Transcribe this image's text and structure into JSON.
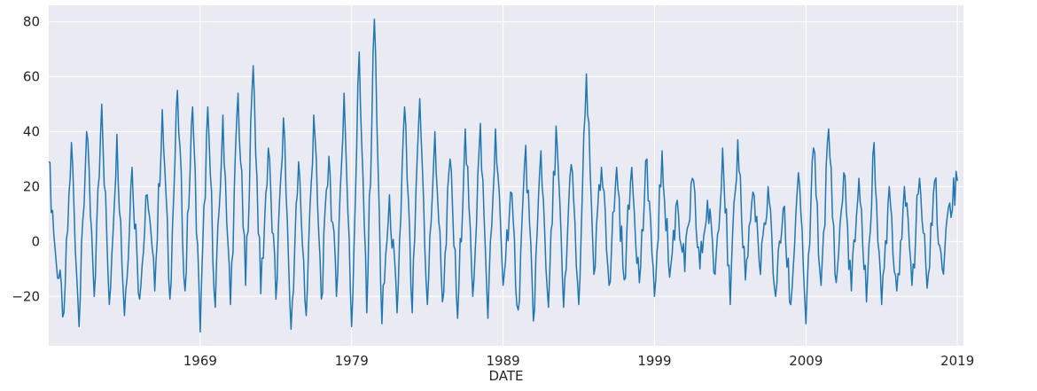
{
  "chart_data": {
    "type": "line",
    "title": "",
    "xlabel": "DATE",
    "ylabel": "",
    "x_ticks": [
      "1969",
      "1979",
      "1989",
      "1999",
      "2009",
      "2019"
    ],
    "y_ticks": [
      "80",
      "60",
      "40",
      "20",
      "0",
      "−20"
    ],
    "xlim": [
      1959.0,
      2019.4
    ],
    "ylim": [
      -38,
      86
    ],
    "grid": true,
    "legend": "none",
    "colors": {
      "background": "#eaeaf2",
      "grid": "#ffffff",
      "line": "#1f77b4"
    },
    "sampling": "monthly, values listed at 6-month steps starting 1959",
    "series": [
      {
        "x_start": 1959.0,
        "x_step": 0.5,
        "values": [
          29,
          -8,
          -26,
          36,
          -31,
          40,
          -20,
          50,
          -23,
          39,
          -27,
          27,
          -21,
          17,
          -18,
          48,
          -21,
          55,
          -18,
          49,
          -33,
          49,
          -24,
          46,
          -23,
          54,
          -16,
          64,
          -19,
          34,
          -21,
          45,
          -32,
          29,
          -27,
          46,
          -21,
          31,
          -20,
          54,
          -31,
          69,
          -26,
          81,
          -30,
          17,
          -26,
          49,
          -26,
          52,
          -23,
          40,
          -22,
          30,
          -28,
          41,
          -20,
          43,
          -28,
          41,
          -16,
          18,
          -25,
          35,
          -29,
          33,
          -24,
          42,
          -24,
          28,
          -23,
          61,
          -12,
          27,
          -16,
          27,
          -14,
          27,
          -15,
          30,
          -20,
          33,
          -13,
          15,
          -11,
          23,
          -10,
          15,
          -12,
          34,
          -23,
          37,
          -14,
          18,
          -12,
          20,
          -20,
          12,
          -23,
          25,
          -30,
          34,
          -16,
          41,
          -15,
          25,
          -18,
          23,
          -22,
          36,
          -23,
          20,
          -18,
          20,
          -16,
          23,
          -17,
          22,
          -10,
          14,
          22
        ]
      }
    ]
  }
}
